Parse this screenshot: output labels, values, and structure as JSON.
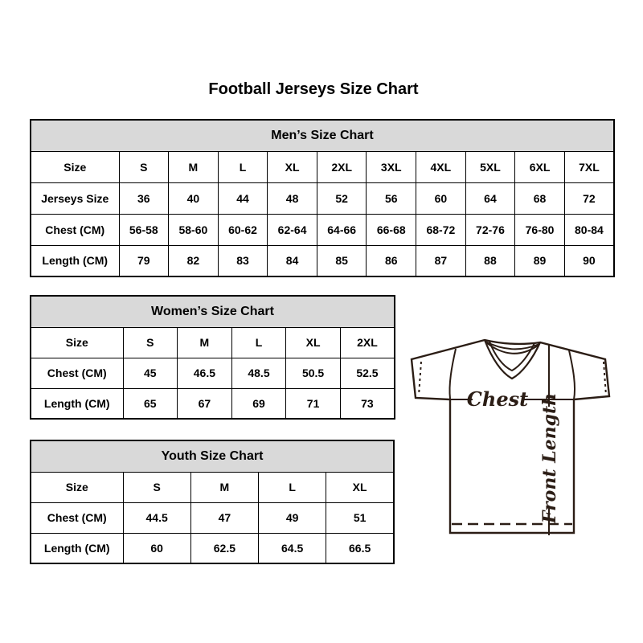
{
  "page": {
    "title": "Football Jerseys Size Chart"
  },
  "colors": {
    "table_header_bg": "#d9d9d9",
    "table_border": "#000000",
    "diagram_ink": "#2b1d15"
  },
  "diagram": {
    "chest_label": "Chest",
    "front_length_label": "Front Length"
  },
  "chart_data": [
    {
      "type": "table",
      "title": "Men’s Size Chart",
      "header": [
        "Size",
        "S",
        "M",
        "L",
        "XL",
        "2XL",
        "3XL",
        "4XL",
        "5XL",
        "6XL",
        "7XL"
      ],
      "rows": [
        [
          "Jerseys Size",
          "36",
          "40",
          "44",
          "48",
          "52",
          "56",
          "60",
          "64",
          "68",
          "72"
        ],
        [
          "Chest (CM)",
          "56-58",
          "58-60",
          "60-62",
          "62-64",
          "64-66",
          "66-68",
          "68-72",
          "72-76",
          "76-80",
          "80-84"
        ],
        [
          "Length (CM)",
          "79",
          "82",
          "83",
          "84",
          "85",
          "86",
          "87",
          "88",
          "89",
          "90"
        ]
      ]
    },
    {
      "type": "table",
      "title": "Women’s Size Chart",
      "header": [
        "Size",
        "S",
        "M",
        "L",
        "XL",
        "2XL"
      ],
      "rows": [
        [
          "Chest (CM)",
          "45",
          "46.5",
          "48.5",
          "50.5",
          "52.5"
        ],
        [
          "Length (CM)",
          "65",
          "67",
          "69",
          "71",
          "73"
        ]
      ]
    },
    {
      "type": "table",
      "title": "Youth Size Chart",
      "header": [
        "Size",
        "S",
        "M",
        "L",
        "XL"
      ],
      "rows": [
        [
          "Chest (CM)",
          "44.5",
          "47",
          "49",
          "51"
        ],
        [
          "Length (CM)",
          "60",
          "62.5",
          "64.5",
          "66.5"
        ]
      ]
    }
  ]
}
